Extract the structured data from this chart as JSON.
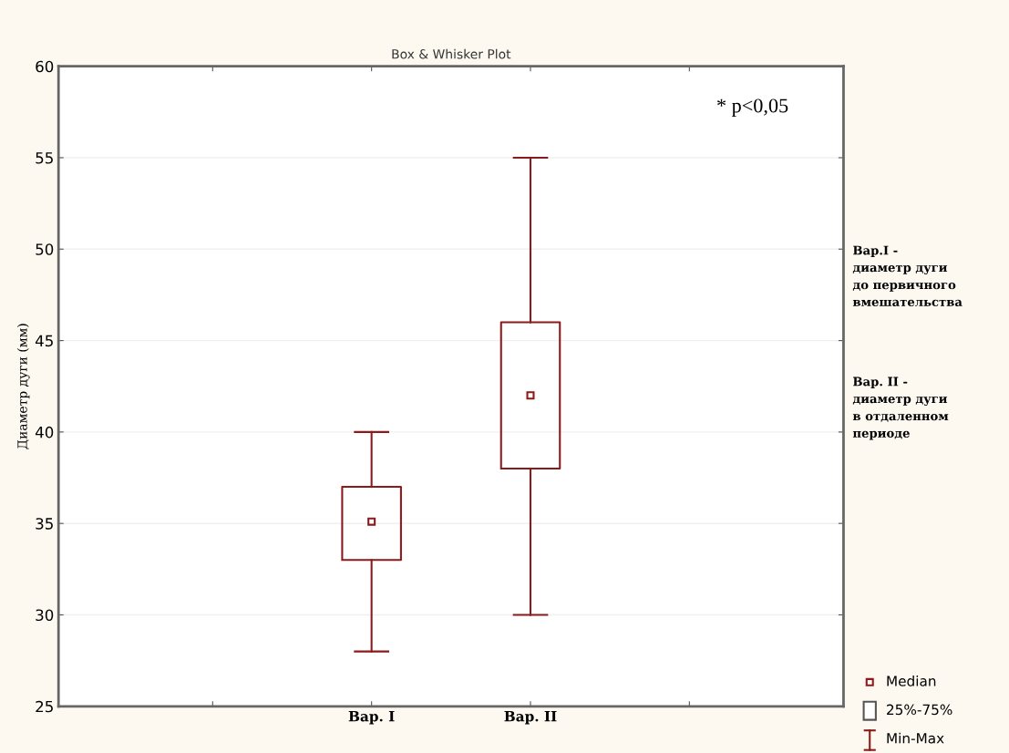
{
  "chart_data": {
    "type": "box",
    "title": "Box & Whisker Plot",
    "ylabel": "Диаметр дуги (мм)",
    "categories": [
      null,
      "Вар. I",
      "Вар. II",
      null
    ],
    "series": [
      {
        "color": "#8b1a1a",
        "boxes": [
          null,
          {
            "low": 28,
            "q1": 33,
            "median": 35.1,
            "q3": 37,
            "high": 40
          },
          {
            "low": 30,
            "q1": 38,
            "median": 42,
            "q3": 46,
            "high": 55
          },
          null
        ]
      }
    ],
    "ylim": [
      25,
      60
    ],
    "yticks": [
      25,
      30,
      35,
      40,
      45,
      50,
      55,
      60
    ],
    "grid": "y",
    "marker": "square",
    "annotations": [
      "* p<0,05",
      "Вар.I -\nдиаметр дуги\nдо первичного\nвмешательства",
      "Вар. II -\nдиаметр дуги\nв отдаленном\nпериоде",
      "Median",
      "25%-75%",
      "Min-Max"
    ]
  }
}
